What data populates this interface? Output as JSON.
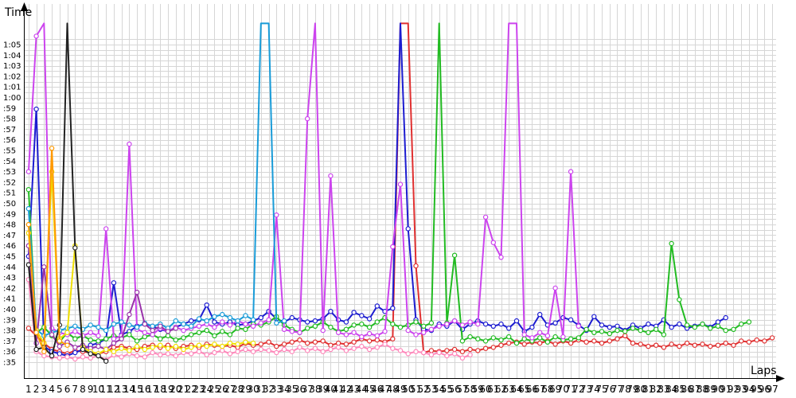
{
  "chart_data": {
    "type": "line",
    "title": "",
    "ylabel": "Time",
    "xlabel": "Laps",
    "grid": true,
    "x_ticks": [
      "1",
      "2",
      "3",
      "4",
      "5",
      "6",
      "7",
      "8",
      "9",
      "10",
      "11",
      "12",
      "13",
      "14",
      "15",
      "16",
      "17",
      "18",
      "19",
      "20",
      "21",
      "22",
      "23",
      "24",
      "25",
      "26",
      "27",
      "28",
      "29",
      "30",
      "31",
      "32",
      "33",
      "34",
      "35",
      "36",
      "37",
      "38",
      "39",
      "40",
      "41",
      "42",
      "43",
      "44",
      "45",
      "46",
      "47",
      "48",
      "49",
      "50",
      "51",
      "52",
      "53",
      "54",
      "55",
      "56",
      "57",
      "58",
      "59",
      "60",
      "61",
      "62",
      "63",
      "64",
      "65",
      "66",
      "67",
      "68",
      "69",
      "70",
      "71",
      "72",
      "73",
      "74",
      "75",
      "76",
      "77",
      "78",
      "79",
      "80",
      "81",
      "82",
      "83",
      "84",
      "85",
      "86",
      "87",
      "88",
      "89",
      "90",
      "91",
      "92",
      "93",
      "94",
      "95",
      "96",
      "97"
    ],
    "y_ticks": [
      "0:35",
      "0:36",
      "0:37",
      "0:38",
      "0:39",
      "0:40",
      "0:41",
      "0:42",
      "0:43",
      "0:44",
      "0:45",
      "0:46",
      "0:47",
      "0:48",
      "0:49",
      "0:50",
      "0:51",
      "0:52",
      "0:53",
      "0:54",
      "0:55",
      "0:56",
      "0:57",
      "0:58",
      "0:59",
      "1:00",
      "1:01",
      "1:02",
      "1:03",
      "1:04",
      "1:05"
    ],
    "y_tick_labels": [
      ":35",
      ":36",
      ":37",
      ":38",
      ":39",
      ":40",
      ":41",
      ":42",
      ":43",
      ":44",
      ":45",
      ":46",
      ":47",
      ":48",
      ":49",
      ":50",
      ":51",
      ":52",
      ":53",
      ":54",
      ":55",
      ":56",
      ":57",
      ":58",
      ":59",
      "1:00",
      "1:01",
      "1:02",
      "1:03",
      "1:04",
      "1:05"
    ],
    "ylim_seconds": [
      34.5,
      66
    ],
    "xlim_laps": [
      0.5,
      97.5
    ],
    "series": [
      {
        "color": "#e03030",
        "x": [
          1,
          2,
          3,
          4,
          5,
          6,
          7,
          8,
          9,
          10,
          11,
          12,
          13,
          14,
          15,
          16,
          17,
          18,
          19,
          20,
          21,
          22,
          23,
          24,
          25,
          26,
          27,
          28,
          29,
          30,
          31,
          32,
          33,
          34,
          35,
          36,
          37,
          38,
          39,
          40,
          41,
          42,
          43,
          44,
          45,
          46,
          47,
          48,
          49,
          50,
          51,
          52,
          53,
          54,
          55,
          56,
          57,
          58,
          59,
          60,
          61,
          62,
          63,
          64,
          65,
          66,
          67,
          68,
          69,
          70,
          71,
          72,
          73,
          74,
          75,
          76,
          77,
          78,
          79,
          80,
          81,
          82,
          83,
          84,
          85,
          86,
          87,
          88,
          89,
          90,
          91,
          92,
          93,
          94,
          95,
          96,
          97
        ],
        "y": [
          38.2,
          37.5,
          36.8,
          36.2,
          36.0,
          35.8,
          36.1,
          36.0,
          35.9,
          35.8,
          36.0,
          36.4,
          36.5,
          36.3,
          36.2,
          36.5,
          36.6,
          36.4,
          36.6,
          36.3,
          36.5,
          36.6,
          36.4,
          36.7,
          36.6,
          36.5,
          36.6,
          36.4,
          36.8,
          36.6,
          36.7,
          36.9,
          36.5,
          36.7,
          36.9,
          37.1,
          36.8,
          36.9,
          37.0,
          36.6,
          36.8,
          36.7,
          36.9,
          37.2,
          37.0,
          37.1,
          36.9,
          37.2,
          67,
          67,
          44.1,
          35.9,
          36.1,
          36.0,
          36.1,
          36.2,
          36.0,
          36.2,
          36.1,
          36.3,
          36.4,
          36.6,
          36.8,
          36.9,
          36.7,
          36.9,
          36.8,
          37.0,
          36.7,
          37.0,
          36.8,
          37.1,
          36.9,
          37.0,
          36.8,
          37.0,
          37.2,
          37.5,
          36.8,
          36.7,
          36.5,
          36.6,
          36.4,
          36.7,
          36.5,
          36.8,
          36.6,
          36.7,
          36.5,
          36.6,
          36.8,
          36.6,
          37.0,
          36.9,
          37.1,
          37.0,
          37.3
        ]
      },
      {
        "color": "#1c1cd0",
        "x": [
          1,
          2,
          3,
          4,
          5,
          6,
          7,
          8,
          9,
          10,
          11,
          12,
          13,
          14,
          15,
          16,
          17,
          18,
          19,
          20,
          21,
          22,
          23,
          24,
          25,
          26,
          27,
          28,
          29,
          30,
          31,
          32,
          33,
          34,
          35,
          36,
          37,
          38,
          39,
          40,
          41,
          42,
          43,
          44,
          45,
          46,
          47,
          48,
          49,
          50,
          51,
          52,
          53,
          54,
          55,
          56,
          57,
          58,
          59,
          60,
          61,
          62,
          63,
          64,
          65,
          66,
          67,
          68,
          69,
          70,
          71,
          72,
          73,
          74,
          75,
          76,
          77,
          78,
          79,
          80,
          81,
          82,
          83,
          84,
          85,
          86,
          87,
          88,
          89,
          90,
          91
        ],
        "y": [
          45.0,
          58.9,
          36.5,
          36.0,
          35.8,
          35.6,
          35.9,
          36.2,
          36.6,
          36.8,
          37.2,
          42.5,
          37.6,
          37.9,
          38.4,
          38.6,
          38.4,
          38.1,
          37.9,
          38.3,
          38.6,
          38.9,
          39.0,
          40.4,
          38.8,
          38.6,
          38.8,
          38.5,
          38.6,
          38.9,
          39.2,
          39.8,
          39.1,
          38.8,
          39.2,
          39.0,
          38.8,
          38.9,
          39.1,
          39.8,
          39.0,
          38.8,
          39.7,
          39.4,
          39.1,
          40.3,
          39.8,
          40.1,
          67,
          47.6,
          39.0,
          38.1,
          38.0,
          38.6,
          38.4,
          38.9,
          38.1,
          38.6,
          38.9,
          38.6,
          38.4,
          38.6,
          38.2,
          38.9,
          37.9,
          38.3,
          39.5,
          38.5,
          38.7,
          39.2,
          39.0,
          38.5,
          38.0,
          39.3,
          38.5,
          38.3,
          38.4,
          38.0,
          38.5,
          38.2,
          38.6,
          38.4,
          39.0,
          38.3,
          38.6,
          38.2,
          38.4,
          38.6,
          38.3,
          38.8,
          39.2
        ]
      },
      {
        "color": "#22bb22",
        "x": [
          1,
          2,
          3,
          4,
          5,
          6,
          7,
          8,
          9,
          10,
          11,
          12,
          13,
          14,
          15,
          16,
          17,
          18,
          19,
          20,
          21,
          22,
          23,
          24,
          25,
          26,
          27,
          28,
          29,
          30,
          31,
          32,
          33,
          34,
          35,
          36,
          37,
          38,
          39,
          40,
          41,
          42,
          43,
          44,
          45,
          46,
          47,
          48,
          49,
          50,
          51,
          52,
          53,
          54,
          55,
          56,
          57,
          58,
          59,
          60,
          61,
          62,
          63,
          64,
          65,
          66,
          67,
          68,
          69,
          70,
          71,
          72,
          73,
          74,
          75,
          76,
          77,
          78,
          79,
          80,
          81,
          82,
          83,
          84,
          85,
          86,
          87,
          88,
          89,
          90,
          91,
          92,
          93,
          94
        ],
        "y": [
          51.3,
          37.8,
          38.3,
          37.5,
          36.9,
          37.8,
          37.2,
          37.5,
          37.1,
          37.0,
          37.2,
          37.5,
          37.3,
          37.6,
          37.0,
          37.4,
          37.6,
          37.2,
          37.5,
          37.1,
          37.3,
          37.6,
          37.8,
          38.0,
          37.5,
          37.9,
          37.6,
          38.2,
          38.1,
          38.6,
          38.5,
          38.8,
          39.3,
          38.5,
          38.1,
          37.8,
          38.2,
          38.4,
          38.8,
          38.3,
          37.9,
          38.1,
          38.5,
          38.6,
          38.3,
          38.8,
          39.2,
          38.6,
          38.3,
          38.5,
          38.8,
          38.4,
          38.7,
          67,
          38.7,
          45.1,
          37.0,
          37.4,
          37.2,
          37.0,
          37.3,
          37.1,
          37.4,
          36.8,
          37.2,
          37.0,
          37.3,
          36.9,
          37.4,
          37.1,
          37.2,
          37.3,
          38.1,
          37.8,
          37.9,
          37.7,
          38.0,
          37.9,
          38.2,
          38.0,
          37.8,
          38.1,
          37.6,
          46.2,
          40.9,
          38.5,
          38.3,
          38.6,
          38.2,
          38.4,
          38.0,
          38.1,
          38.6,
          38.8
        ]
      },
      {
        "color": "#cc44ee",
        "x": [
          1,
          2,
          3,
          4,
          5,
          6,
          7,
          8,
          9,
          10,
          11,
          12,
          13,
          14,
          15,
          16,
          17,
          18,
          19,
          20,
          21,
          22,
          23,
          24,
          25,
          26,
          27,
          28,
          29,
          30,
          31,
          32,
          33,
          34,
          35,
          36,
          37,
          38,
          39,
          40,
          41,
          42,
          43,
          44,
          45,
          46,
          47,
          48,
          49,
          50,
          51,
          52,
          53,
          54,
          55,
          56,
          57,
          58,
          59,
          60,
          61,
          62,
          63,
          64,
          65,
          66,
          67,
          68,
          69,
          70,
          71,
          72
        ],
        "y": [
          53.0,
          65.8,
          67,
          38.2,
          37.8,
          37.6,
          37.9,
          37.5,
          37.8,
          37.5,
          47.6,
          37.2,
          37.5,
          55.6,
          38.1,
          37.8,
          37.6,
          38.2,
          37.9,
          38.3,
          38.0,
          38.2,
          38.4,
          38.6,
          38.3,
          38.8,
          38.5,
          38.9,
          38.6,
          38.4,
          38.7,
          39.0,
          48.9,
          38.1,
          37.9,
          37.8,
          58.0,
          67,
          38.0,
          52.6,
          37.8,
          37.6,
          37.8,
          37.4,
          37.7,
          37.5,
          37.9,
          45.9,
          51.8,
          38.0,
          37.6,
          37.8,
          38.1,
          38.4,
          38.6,
          38.9,
          38.5,
          38.8,
          38.6,
          48.7,
          46.3,
          44.9,
          67,
          67,
          37.6,
          37.3,
          37.8,
          37.5,
          42.0,
          37.4,
          53.0,
          38.4
        ]
      },
      {
        "color": "#ff88bb",
        "x": [
          1,
          2,
          3,
          4,
          5,
          6,
          7,
          8,
          9,
          10,
          11,
          12,
          13,
          14,
          15,
          16,
          17,
          18,
          19,
          20,
          21,
          22,
          23,
          24,
          25,
          26,
          27,
          28,
          29,
          30,
          31,
          32,
          33,
          34,
          35,
          36,
          37,
          38,
          39,
          40,
          41,
          42,
          43,
          44,
          45,
          46,
          47,
          48,
          49,
          50,
          51,
          52,
          53,
          54,
          55,
          56,
          57,
          58
        ],
        "y": [
          42.8,
          36.0,
          35.6,
          35.5,
          35.4,
          35.5,
          35.3,
          35.5,
          35.4,
          35.6,
          35.2,
          35.7,
          35.5,
          35.8,
          35.6,
          35.5,
          35.9,
          35.7,
          35.8,
          35.6,
          35.9,
          35.8,
          36.0,
          35.7,
          35.9,
          36.1,
          35.8,
          36.0,
          36.2,
          36.0,
          36.2,
          36.1,
          35.9,
          36.2,
          36.0,
          36.4,
          36.1,
          36.3,
          36.0,
          36.2,
          36.4,
          36.1,
          36.3,
          36.5,
          36.2,
          36.4,
          36.7,
          36.3,
          36.1,
          35.8,
          36.0,
          35.9,
          35.7,
          35.9,
          35.6,
          35.8,
          35.4,
          35.7
        ]
      },
      {
        "color": "#1a9cd8",
        "x": [
          1,
          2,
          3,
          4,
          5,
          6,
          7,
          8,
          9,
          10,
          11,
          12,
          13,
          14,
          15,
          16,
          17,
          18,
          19,
          20,
          21,
          22,
          23,
          24,
          25,
          26,
          27,
          28,
          29,
          30,
          31,
          32,
          33,
          34
        ],
        "y": [
          49.5,
          38.1,
          37.5,
          37.8,
          38.0,
          38.2,
          38.4,
          38.1,
          38.5,
          38.3,
          38.0,
          38.6,
          38.8,
          38.5,
          38.3,
          38.7,
          38.4,
          38.6,
          38.2,
          38.9,
          38.6,
          38.4,
          39.1,
          38.9,
          39.3,
          39.5,
          39.2,
          38.9,
          39.4,
          39.0,
          67,
          67,
          38.7,
          38.9
        ]
      },
      {
        "color": "#9933aa",
        "x": [
          1,
          2,
          3,
          4,
          5,
          6,
          7,
          8,
          9,
          10,
          11,
          12,
          13,
          14,
          15,
          16,
          17,
          18,
          19,
          20
        ],
        "y": [
          46.0,
          36.8,
          44.0,
          37.6,
          36.5,
          36.9,
          36.4,
          36.6,
          36.3,
          36.5,
          36.2,
          36.8,
          37.2,
          39.5,
          41.6,
          38.6,
          38.0,
          38.4,
          37.9,
          38.2
        ]
      },
      {
        "color": "#f0e000",
        "x": [
          1,
          2,
          3,
          4,
          5,
          6,
          7,
          8,
          9,
          10,
          11,
          12,
          13,
          14,
          15,
          16,
          17,
          18,
          19,
          20,
          21,
          22,
          23,
          24,
          25,
          26,
          27,
          28,
          29,
          30
        ],
        "y": [
          47.2,
          38.0,
          36.8,
          53.0,
          37.2,
          37.8,
          46.0,
          36.4,
          36.0,
          35.8,
          36.2,
          36.0,
          36.3,
          36.1,
          36.5,
          36.2,
          36.4,
          36.6,
          36.3,
          36.5,
          36.2,
          36.4,
          36.6,
          36.5,
          36.7,
          36.5,
          36.8,
          36.7,
          36.9,
          36.8
        ]
      },
      {
        "color": "#222222",
        "x": [
          1,
          2,
          3,
          4,
          5,
          6,
          7,
          8,
          9,
          10,
          11
        ],
        "y": [
          44.2,
          36.2,
          36.4,
          35.6,
          38.5,
          67,
          45.8,
          36.2,
          35.8,
          35.6,
          35.1
        ]
      },
      {
        "color": "#ff9900",
        "x": [
          1,
          2,
          3,
          4,
          5,
          6
        ],
        "y": [
          48.0,
          37.8,
          36.0,
          55.2,
          37.0,
          36.6
        ]
      }
    ]
  }
}
